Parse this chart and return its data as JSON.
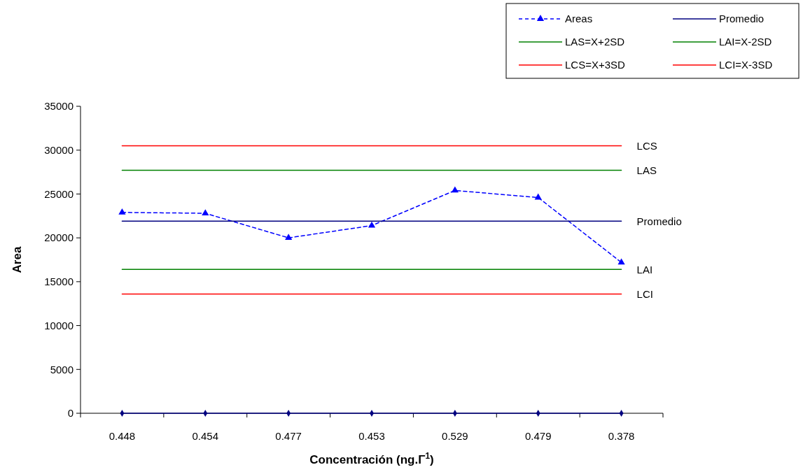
{
  "chart_data": {
    "type": "line",
    "xlabel": "Concentración (ng.Γ$^{1}$)",
    "ylabel": "Area",
    "categories": [
      "0.448",
      "0.454",
      "0.477",
      "0.453",
      "0.529",
      "0.479",
      "0.378"
    ],
    "series": [
      {
        "name": "Areas",
        "color": "#0000ff",
        "values": [
          22900,
          22800,
          20000,
          21400,
          25400,
          24600,
          17200
        ],
        "marker": "triangle",
        "line_style": "dashed"
      },
      {
        "name": "Promedio",
        "color": "#000080",
        "values": [
          21900,
          21900,
          21900,
          21900,
          21900,
          21900,
          21900
        ],
        "marker": "none",
        "line_style": "solid"
      },
      {
        "name": "LAS=X+2SD",
        "color": "#008000",
        "values": [
          27700,
          27700,
          27700,
          27700,
          27700,
          27700,
          27700
        ],
        "marker": "none",
        "line_style": "solid"
      },
      {
        "name": "LAI=X-2SD",
        "color": "#008000",
        "values": [
          16400,
          16400,
          16400,
          16400,
          16400,
          16400,
          16400
        ],
        "marker": "none",
        "line_style": "solid"
      },
      {
        "name": "LCS=X+3SD",
        "color": "#ff0000",
        "values": [
          30500,
          30500,
          30500,
          30500,
          30500,
          30500,
          30500
        ],
        "marker": "none",
        "line_style": "solid"
      },
      {
        "name": "LCI=X-3SD",
        "color": "#ff0000",
        "values": [
          13600,
          13600,
          13600,
          13600,
          13600,
          13600,
          13600
        ],
        "marker": "none",
        "line_style": "solid"
      },
      {
        "color": "#000080",
        "values": [
          0,
          0,
          0,
          0,
          0,
          0,
          0
        ],
        "marker": "diamond",
        "line_style": "solid"
      }
    ],
    "annotations": [
      {
        "text": "LCS",
        "x": "0.378",
        "y": 30500
      },
      {
        "text": "LAS",
        "x": "0.378",
        "y": 27700
      },
      {
        "text": "Promedio",
        "x": "0.378",
        "y": 21900
      },
      {
        "text": "LAI",
        "x": "0.378",
        "y": 16400
      },
      {
        "text": "LCI",
        "x": "0.378",
        "y": 13600
      }
    ],
    "ylim": [
      0,
      35000
    ],
    "yticks": [
      0,
      5000,
      10000,
      15000,
      20000,
      25000,
      30000,
      35000
    ],
    "grid": false,
    "legend": "top right"
  }
}
